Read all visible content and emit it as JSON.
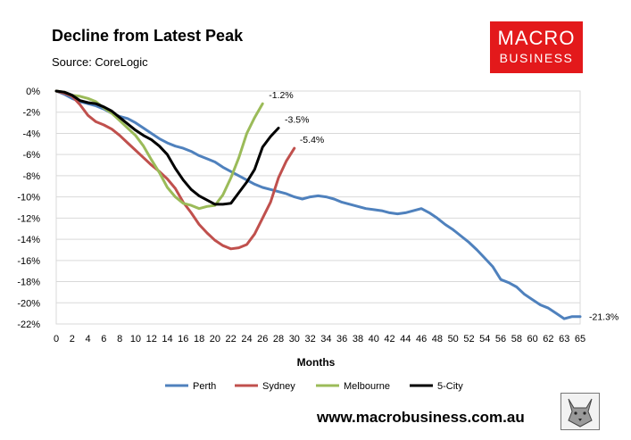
{
  "header": {
    "title": "Decline from Latest Peak",
    "source": "Source: CoreLogic",
    "logo_line1": "MACRO",
    "logo_line2": "BUSINESS",
    "website": "www.macrobusiness.com.au"
  },
  "chart_data": {
    "type": "line",
    "title": "Decline from Latest Peak",
    "xlabel": "Months",
    "ylabel": "",
    "xlim": [
      0,
      66
    ],
    "ylim": [
      -22,
      0
    ],
    "y_ticks": [
      0,
      -2,
      -4,
      -6,
      -8,
      -10,
      -12,
      -14,
      -16,
      -18,
      -20,
      -22
    ],
    "y_tick_labels": [
      "0%",
      "-2%",
      "-4%",
      "-6%",
      "-8%",
      "-10%",
      "-12%",
      "-14%",
      "-16%",
      "-18%",
      "-20%",
      "-22%"
    ],
    "x_tick_labels": [
      "0",
      "2",
      "4",
      "6",
      "8",
      "10",
      "12",
      "14",
      "16",
      "18",
      "20",
      "22",
      "24",
      "26",
      "28",
      "30",
      "32",
      "34",
      "36",
      "38",
      "40",
      "42",
      "44",
      "46",
      "48",
      "50",
      "52",
      "54",
      "56",
      "58",
      "60",
      "62",
      "63",
      "65"
    ],
    "grid": "horizontal",
    "legend_position": "bottom",
    "series": [
      {
        "name": "Perth",
        "color": "#4f81bd",
        "end_label": "-21.3%",
        "x": [
          0,
          1,
          2,
          3,
          4,
          5,
          6,
          7,
          8,
          9,
          10,
          11,
          12,
          13,
          14,
          15,
          16,
          17,
          18,
          19,
          20,
          21,
          22,
          23,
          24,
          25,
          26,
          27,
          28,
          29,
          30,
          31,
          32,
          33,
          34,
          35,
          36,
          37,
          38,
          39,
          40,
          41,
          42,
          43,
          44,
          45,
          46,
          47,
          48,
          49,
          50,
          51,
          52,
          53,
          54,
          55,
          56,
          57,
          58,
          59,
          60,
          61,
          62,
          63,
          64,
          65,
          66
        ],
        "values": [
          0,
          -0.3,
          -0.7,
          -1.0,
          -1.2,
          -1.4,
          -1.7,
          -2.1,
          -2.4,
          -2.6,
          -3.0,
          -3.5,
          -4.0,
          -4.5,
          -4.9,
          -5.2,
          -5.4,
          -5.7,
          -6.1,
          -6.4,
          -6.7,
          -7.2,
          -7.6,
          -8.0,
          -8.4,
          -8.8,
          -9.1,
          -9.3,
          -9.5,
          -9.7,
          -10.0,
          -10.2,
          -10.0,
          -9.9,
          -10.0,
          -10.2,
          -10.5,
          -10.7,
          -10.9,
          -11.1,
          -11.2,
          -11.3,
          -11.5,
          -11.6,
          -11.5,
          -11.3,
          -11.1,
          -11.5,
          -12.0,
          -12.6,
          -13.1,
          -13.7,
          -14.3,
          -15.0,
          -15.8,
          -16.6,
          -17.8,
          -18.1,
          -18.5,
          -19.2,
          -19.7,
          -20.2,
          -20.5,
          -21.0,
          -21.5,
          -21.3,
          -21.3
        ]
      },
      {
        "name": "Sydney",
        "color": "#c0504d",
        "end_label": "-5.4%",
        "x": [
          0,
          1,
          2,
          3,
          4,
          5,
          6,
          7,
          8,
          9,
          10,
          11,
          12,
          13,
          14,
          15,
          16,
          17,
          18,
          19,
          20,
          21,
          22,
          23,
          24,
          25,
          26,
          27,
          28,
          29,
          30
        ],
        "values": [
          0,
          -0.2,
          -0.5,
          -1.3,
          -2.3,
          -2.9,
          -3.2,
          -3.6,
          -4.2,
          -4.9,
          -5.6,
          -6.3,
          -7.0,
          -7.6,
          -8.3,
          -9.2,
          -10.5,
          -11.5,
          -12.6,
          -13.4,
          -14.1,
          -14.6,
          -14.9,
          -14.8,
          -14.5,
          -13.5,
          -12.0,
          -10.5,
          -8.2,
          -6.6,
          -5.4
        ]
      },
      {
        "name": "Melbourne",
        "color": "#9bbb59",
        "end_label": "-1.2%",
        "x": [
          0,
          1,
          2,
          3,
          4,
          5,
          6,
          7,
          8,
          9,
          10,
          11,
          12,
          13,
          14,
          15,
          16,
          17,
          18,
          19,
          20,
          21,
          22,
          23,
          24,
          25,
          26
        ],
        "values": [
          0,
          -0.1,
          -0.4,
          -0.5,
          -0.7,
          -1.0,
          -1.6,
          -2.1,
          -2.8,
          -3.5,
          -4.2,
          -5.2,
          -6.5,
          -7.7,
          -9.1,
          -10.0,
          -10.6,
          -10.8,
          -11.1,
          -10.9,
          -10.8,
          -9.8,
          -8.2,
          -6.3,
          -4.0,
          -2.5,
          -1.2
        ]
      },
      {
        "name": "5-City",
        "color": "#000000",
        "end_label": "-3.5%",
        "x": [
          0,
          1,
          2,
          3,
          4,
          5,
          6,
          7,
          8,
          9,
          10,
          11,
          12,
          13,
          14,
          15,
          16,
          17,
          18,
          19,
          20,
          21,
          22,
          23,
          24,
          25,
          26,
          27,
          28
        ],
        "values": [
          0,
          -0.1,
          -0.4,
          -0.9,
          -1.1,
          -1.2,
          -1.5,
          -1.9,
          -2.5,
          -3.1,
          -3.7,
          -4.2,
          -4.6,
          -5.2,
          -6.0,
          -7.3,
          -8.4,
          -9.3,
          -9.9,
          -10.3,
          -10.7,
          -10.7,
          -10.6,
          -9.6,
          -8.6,
          -7.4,
          -5.3,
          -4.3,
          -3.5
        ]
      }
    ]
  }
}
